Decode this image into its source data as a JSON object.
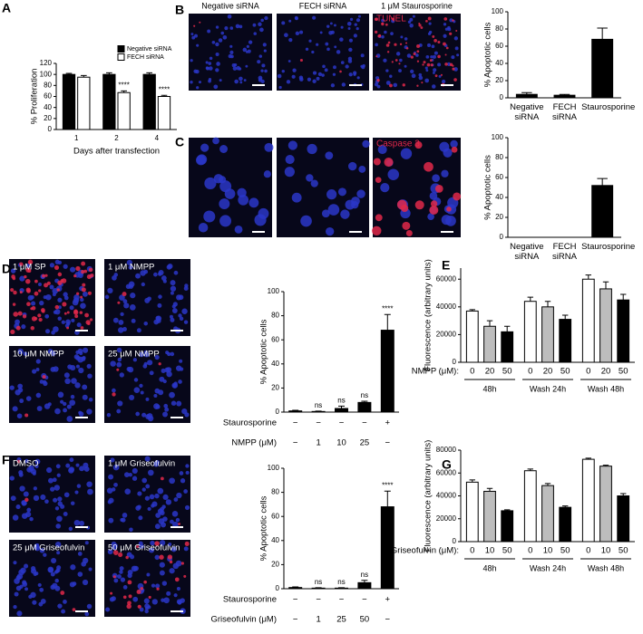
{
  "panels": [
    "A",
    "B",
    "C",
    "D",
    "E",
    "F",
    "G"
  ],
  "column_headers": [
    "Negative siRNA",
    "FECH siRNA",
    "1 μM Staurosporine"
  ],
  "stains": [
    "TUNEL",
    "Caspase 3"
  ],
  "micrographs_d": [
    "1 μM SP",
    "1 μM NMPP",
    "10 μM NMPP",
    "25 μM NMPP"
  ],
  "micrographs_f": [
    "DMSO",
    "1 μM Griseofulvin",
    "25 μM Griseofulvin",
    "50 μM Griseofulvin"
  ],
  "chart_data": [
    {
      "type": "bar",
      "ylabel": "% Proliferation",
      "xlabel": "Days after transfection",
      "categories": [
        "1",
        "2",
        "4"
      ],
      "ylim": [
        0,
        120
      ],
      "yticks": [
        0,
        20,
        40,
        60,
        80,
        100,
        120
      ],
      "legend": "upper right",
      "series": [
        {
          "name": "Negative siRNA",
          "color": "#000000",
          "values": [
            100,
            100,
            100
          ],
          "errors": [
            2,
            3,
            3
          ]
        },
        {
          "name": "FECH siRNA",
          "color": "#ffffff",
          "values": [
            95,
            67,
            60
          ],
          "errors": [
            3,
            3,
            2
          ],
          "annotations": [
            null,
            "****",
            "****"
          ]
        }
      ]
    },
    {
      "type": "bar",
      "ylabel": "% Apoptotic cells",
      "categories": [
        "Negative siRNA",
        "FECH siRNA",
        "Staurosporine"
      ],
      "ylim": [
        0,
        100
      ],
      "yticks": [
        0,
        20,
        40,
        60,
        80,
        100
      ],
      "series": [
        {
          "color": "#000000",
          "values": [
            4,
            3,
            68
          ],
          "errors": [
            2,
            1,
            13
          ]
        }
      ]
    },
    {
      "type": "bar",
      "ylabel": "% Apoptotic cells",
      "categories": [
        "Negative siRNA",
        "FECH siRNA",
        "Staurosporine"
      ],
      "ylim": [
        0,
        100
      ],
      "yticks": [
        0,
        20,
        40,
        60,
        80,
        100
      ],
      "series": [
        {
          "color": "#000000",
          "values": [
            0,
            0,
            52
          ],
          "errors": [
            0,
            0,
            7
          ]
        }
      ]
    },
    {
      "type": "bar",
      "ylabel": "% Apoptotic cells",
      "ylim": [
        0,
        100
      ],
      "yticks": [
        0,
        20,
        40,
        60,
        80,
        100
      ],
      "rows": [
        {
          "name": "Staurosporine",
          "labels": [
            "−",
            "−",
            "−",
            "−",
            "+"
          ]
        },
        {
          "name": "NMPP (μM)",
          "labels": [
            "−",
            "1",
            "10",
            "25",
            "−"
          ]
        }
      ],
      "series": [
        {
          "color": "#000000",
          "values": [
            1,
            0.5,
            3,
            8,
            68
          ],
          "errors": [
            0.5,
            0.3,
            2,
            1,
            13
          ],
          "annotations": [
            null,
            "ns",
            "ns",
            "ns",
            "****"
          ]
        }
      ]
    },
    {
      "type": "grouped_bar",
      "ylabel": "Fluorescence (arbitrary units)",
      "x_prefix": "NMPP (μM):",
      "categories": [
        "0",
        "20",
        "50",
        "0",
        "20",
        "50",
        "0",
        "20",
        "50"
      ],
      "groups": [
        "48h",
        "Wash 24h",
        "Wash 48h"
      ],
      "ylim": [
        0,
        68000
      ],
      "yticks": [
        0,
        20000,
        40000,
        60000
      ],
      "colors": [
        "#ffffff",
        "#bdbdbd",
        "#000000",
        "#ffffff",
        "#bdbdbd",
        "#000000",
        "#ffffff",
        "#bdbdbd",
        "#000000"
      ],
      "values": [
        37000,
        26000,
        22000,
        44000,
        40000,
        31000,
        60000,
        53000,
        45000
      ],
      "errors": [
        1000,
        4000,
        4000,
        3000,
        4000,
        3000,
        3000,
        5000,
        4000
      ]
    },
    {
      "type": "bar",
      "ylabel": "% Apoptotic cells",
      "ylim": [
        0,
        100
      ],
      "yticks": [
        0,
        20,
        40,
        60,
        80,
        100
      ],
      "rows": [
        {
          "name": "Staurosporine",
          "labels": [
            "−",
            "−",
            "−",
            "−",
            "+"
          ]
        },
        {
          "name": "Griseofulvin (μM)",
          "labels": [
            "−",
            "1",
            "25",
            "50",
            "−"
          ]
        }
      ],
      "series": [
        {
          "color": "#000000",
          "values": [
            1,
            0.5,
            0.5,
            5,
            68
          ],
          "errors": [
            0.5,
            0.3,
            0.3,
            2,
            13
          ],
          "annotations": [
            null,
            "ns",
            "ns",
            "ns",
            "****"
          ]
        }
      ]
    },
    {
      "type": "grouped_bar",
      "ylabel": "Fluorescence (arbitrary units)",
      "x_prefix": "Griseofulvin (μM):",
      "categories": [
        "0",
        "10",
        "50",
        "0",
        "10",
        "50",
        "0",
        "10",
        "50"
      ],
      "groups": [
        "48h",
        "Wash 24h",
        "Wash 48h"
      ],
      "ylim": [
        0,
        80000
      ],
      "yticks": [
        0,
        20000,
        40000,
        60000,
        80000
      ],
      "colors": [
        "#ffffff",
        "#bdbdbd",
        "#000000",
        "#ffffff",
        "#bdbdbd",
        "#000000",
        "#ffffff",
        "#bdbdbd",
        "#000000"
      ],
      "values": [
        52000,
        44000,
        27000,
        62000,
        49000,
        30000,
        72000,
        66000,
        40000
      ],
      "errors": [
        2000,
        2500,
        800,
        1500,
        1800,
        1200,
        1000,
        800,
        2000
      ]
    }
  ]
}
